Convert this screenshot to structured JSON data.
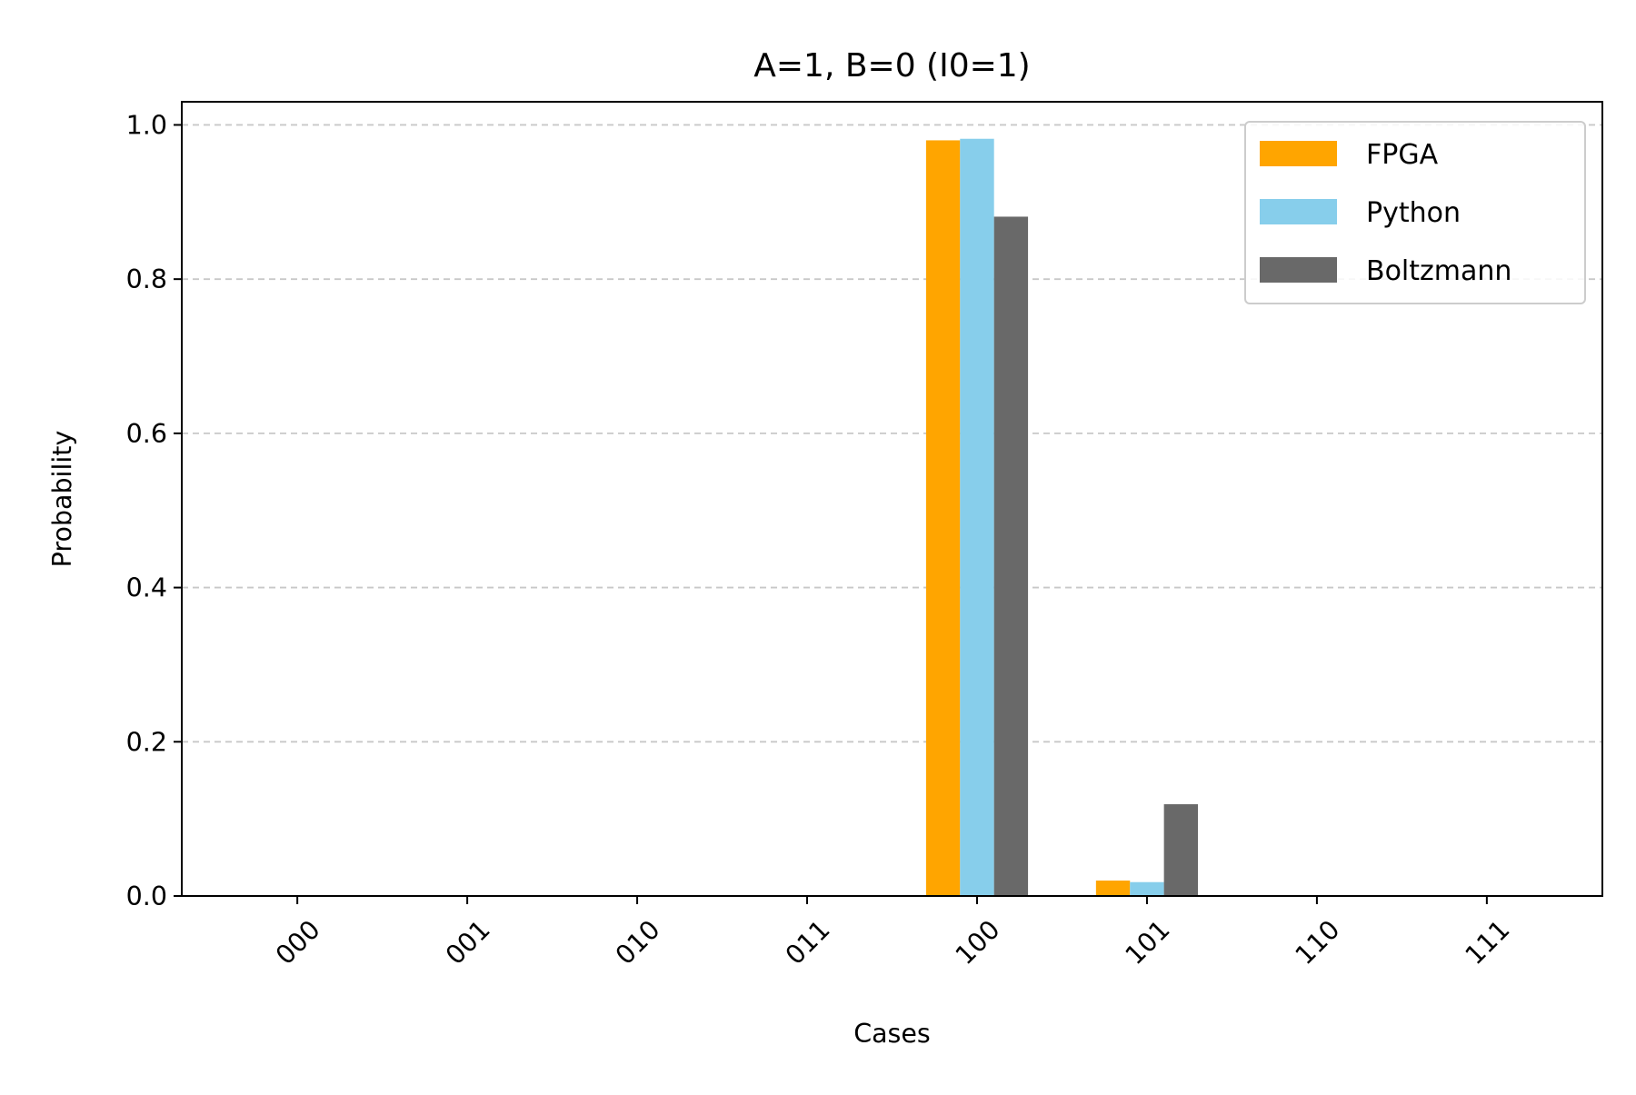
{
  "chart_data": {
    "type": "bar",
    "title": "A=1, B=0 (I0=1)",
    "xlabel": "Cases",
    "ylabel": "Probability",
    "categories": [
      "000",
      "001",
      "010",
      "011",
      "100",
      "101",
      "110",
      "111"
    ],
    "series": [
      {
        "name": "FPGA",
        "color": "#FFA500",
        "values": [
          0,
          0,
          0,
          0,
          0.98,
          0.02,
          0,
          0
        ]
      },
      {
        "name": "Python",
        "color": "#87CEEB",
        "values": [
          0,
          0,
          0,
          0,
          0.982,
          0.018,
          0,
          0
        ]
      },
      {
        "name": "Boltzmann",
        "color": "#696969",
        "values": [
          0,
          0,
          0,
          0,
          0.881,
          0.119,
          0,
          0
        ]
      }
    ],
    "ylim": [
      0,
      1.03
    ],
    "yticks": [
      "0.0",
      "0.2",
      "0.4",
      "0.6",
      "0.8",
      "1.0"
    ],
    "grid": "y-dashed",
    "legend_position": "top-right"
  }
}
